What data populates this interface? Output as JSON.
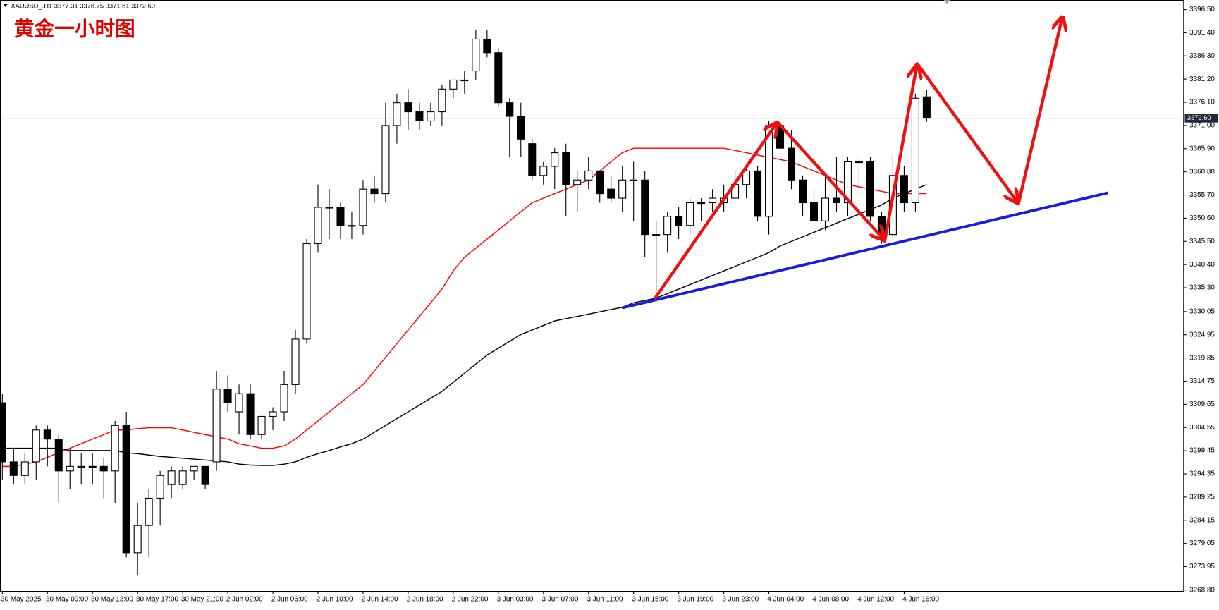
{
  "chart_data": {
    "type": "candlestick",
    "info": "XAUUSD_.H1 3377.31 3378.75 3371.81 3372.60",
    "title": "黄金一小时图",
    "categories": [
      "30 May 2025",
      null,
      null,
      null,
      "30 May 09:00",
      null,
      null,
      null,
      "30 May 13:00",
      null,
      null,
      null,
      "30 May 17:00",
      null,
      null,
      null,
      "30 May 21:00",
      null,
      null,
      null,
      "2 Jun 02:00",
      null,
      null,
      null,
      "2 Jun 06:00",
      null,
      null,
      null,
      "2 Jun 10:00",
      null,
      null,
      null,
      "2 Jun 14:00",
      null,
      null,
      null,
      "2 Jun 18:00",
      null,
      null,
      null,
      "2 Jun 22:00",
      null,
      null,
      null,
      "3 Jun 03:00",
      null,
      null,
      null,
      "3 Jun 07:00",
      null,
      null,
      null,
      "3 Jun 11:00",
      null,
      null,
      null,
      "3 Jun 15:00",
      null,
      null,
      null,
      "3 Jun 19:00",
      null,
      null,
      null,
      "3 Jun 23:00",
      null,
      null,
      null,
      "4 Jun 04:00",
      null,
      null,
      null,
      "4 Jun 08:00",
      null,
      null,
      null,
      "4 Jun 12:00",
      null,
      null,
      null,
      "4 Jun 16:00",
      null,
      null
    ],
    "open": [
      3310,
      3297,
      3294,
      3297,
      3304,
      3302,
      3295,
      3296,
      3296,
      3296,
      3295,
      3305,
      3277,
      3283,
      3289,
      3292,
      3292,
      3295,
      3296,
      3297,
      3313,
      3308,
      3312,
      3303,
      3307,
      3308,
      3314,
      3324,
      3345,
      3353,
      3353,
      3349,
      3349,
      3357,
      3356,
      3371,
      3376,
      3374,
      3372,
      3374,
      3379,
      3381,
      3383,
      3390,
      3387,
      3376,
      3373,
      3367,
      3360,
      3362,
      3365,
      3358,
      3359,
      3361,
      3357,
      3355,
      3359,
      3359,
      3347,
      3347,
      3351,
      3349,
      3354,
      3354,
      3354,
      3355,
      3358,
      3361,
      3351,
      3371,
      3366,
      3359,
      3354,
      3350,
      3355,
      3354,
      3363,
      3363,
      3351,
      3347,
      3360,
      3354,
      3377.31
    ],
    "high": [
      3312,
      3300,
      3299,
      3305,
      3305,
      3303,
      3300,
      3299,
      3299,
      3298,
      3306,
      3308,
      3288,
      3291,
      3295,
      3296,
      3296,
      3296,
      3296,
      3317,
      3316,
      3314,
      3314,
      3307,
      3309,
      3317,
      3326,
      3346,
      3358,
      3357,
      3354,
      3352,
      3359,
      3360,
      3376,
      3378,
      3379,
      3376,
      3376,
      3380,
      3381,
      3383,
      3392,
      3392,
      3388,
      3377,
      3376,
      3368,
      3363,
      3366,
      3367,
      3361,
      3364,
      3361,
      3360,
      3362,
      3363,
      3361,
      3350,
      3352,
      3353,
      3355,
      3355,
      3357,
      3358,
      3361,
      3362,
      3362,
      3372,
      3373,
      3370,
      3360,
      3357,
      3360,
      3364,
      3364,
      3364,
      3364,
      3352,
      3364,
      3362,
      3378,
      3378.75
    ],
    "low": [
      3293,
      3292,
      3292,
      3293,
      3296,
      3288,
      3291,
      3292,
      3292,
      3289,
      3288,
      3276,
      3272,
      3276,
      3283,
      3289,
      3291,
      3293,
      3291,
      3295,
      3308,
      3303,
      3302,
      3302,
      3304,
      3306,
      3312,
      3323,
      3343,
      3346,
      3346,
      3346,
      3347,
      3354,
      3354,
      3367,
      3370,
      3370,
      3371,
      3371,
      3377,
      3378,
      3381,
      3386,
      3375,
      3364,
      3364,
      3359,
      3358,
      3357,
      3351,
      3352,
      3357,
      3354,
      3354,
      3352,
      3350,
      3342,
      3334,
      3343,
      3346,
      3347,
      3350,
      3352,
      3352,
      3355,
      3355,
      3350,
      3347,
      3364,
      3357,
      3351,
      3349,
      3348,
      3352,
      3351,
      3356,
      3350,
      3345,
      3346,
      3352,
      3352,
      3371.81
    ],
    "close": [
      3297,
      3294,
      3297,
      3304,
      3302,
      3295,
      3296,
      3296,
      3296,
      3295,
      3305,
      3277,
      3283,
      3289,
      3294,
      3295,
      3295,
      3296,
      3292,
      3313,
      3310,
      3312,
      3303,
      3307,
      3308,
      3314,
      3324,
      3345,
      3353,
      3353,
      3349,
      3349,
      3357,
      3356,
      3371,
      3376,
      3374,
      3372,
      3374,
      3379,
      3381,
      3381,
      3390,
      3387,
      3376,
      3373,
      3368,
      3360,
      3362,
      3365,
      3358,
      3359,
      3361,
      3356,
      3355,
      3359,
      3359,
      3347,
      3347,
      3351,
      3349,
      3354,
      3354,
      3355,
      3355,
      3358,
      3361,
      3351,
      3371,
      3366,
      3359,
      3354,
      3350,
      3355,
      3354,
      3363,
      3363,
      3351,
      3347,
      3360,
      3354,
      3377,
      3372.6
    ],
    "up_color": "#ffffff",
    "down_color": "#000000",
    "lines": [
      {
        "color": "#ff0000",
        "values": [
          3296,
          3296,
          3296.5,
          3297,
          3298,
          3299,
          3300,
          3301,
          3302,
          3303,
          3304,
          3304,
          3304.3,
          3304.5,
          3304.5,
          3304.5,
          3304,
          3303.5,
          3303,
          3302.5,
          3302,
          3301,
          3300.5,
          3300,
          3300,
          3300.5,
          3302,
          3304,
          3306,
          3308,
          3310,
          3312,
          3314,
          3317,
          3320,
          3323,
          3326,
          3329,
          3332,
          3335,
          3339,
          3342,
          3344,
          3346,
          3348,
          3350,
          3352,
          3354,
          3355,
          3356,
          3357,
          3358,
          3359,
          3361,
          3363,
          3365,
          3366,
          3366,
          3366,
          3366,
          3366,
          3366,
          3366,
          3366,
          3366,
          3365.5,
          3365,
          3364.5,
          3364,
          3363.5,
          3363,
          3362,
          3361,
          3360,
          3359,
          3358,
          3357.5,
          3357,
          3356.5,
          3356,
          3356,
          3356,
          3356
        ]
      },
      {
        "color": "#000000",
        "values": [
          3300,
          3300,
          3300,
          3300,
          3300,
          3300,
          3299.5,
          3299.5,
          3299.5,
          3299.5,
          3299.5,
          3299,
          3298.8,
          3298.5,
          3298.2,
          3298,
          3297.8,
          3297.6,
          3297.4,
          3297.2,
          3297,
          3296.5,
          3296.3,
          3296.2,
          3296.2,
          3296.5,
          3297,
          3298,
          3298.8,
          3299.5,
          3300.3,
          3301,
          3302,
          3303.5,
          3305,
          3306.5,
          3308,
          3309.5,
          3311,
          3312.5,
          3314.5,
          3316.5,
          3318.5,
          3320.5,
          3322,
          3323.5,
          3325,
          3326,
          3327,
          3328,
          3328.5,
          3329,
          3329.5,
          3330,
          3330.5,
          3331,
          3332,
          3332.5,
          3333,
          3334,
          3335,
          3336,
          3337,
          3338,
          3339,
          3340,
          3341,
          3342,
          3343,
          3344.5,
          3345.5,
          3346.5,
          3347.5,
          3348.5,
          3349.5,
          3350.5,
          3351.5,
          3352.5,
          3353.5,
          3355,
          3356,
          3357,
          3358
        ]
      }
    ],
    "current_price": {
      "value": 3372.6,
      "label": "3372.60"
    },
    "ylim": [
      3268.6,
      3398.6
    ],
    "yticks": [
      {
        "value": 3396.5,
        "label": "3396.50"
      },
      {
        "value": 3391.4,
        "label": "3391.40"
      },
      {
        "value": 3386.3,
        "label": "3386.30"
      },
      {
        "value": 3381.2,
        "label": "3381.20"
      },
      {
        "value": 3376.1,
        "label": "3376.10"
      },
      {
        "value": 3371,
        "label": "3371.00"
      },
      {
        "value": 3365.9,
        "label": "3365.90"
      },
      {
        "value": 3360.8,
        "label": "3360.80"
      },
      {
        "value": 3355.7,
        "label": "3355.70"
      },
      {
        "value": 3350.6,
        "label": "3350.60"
      },
      {
        "value": 3345.5,
        "label": "3345.50"
      },
      {
        "value": 3340.4,
        "label": "3340.40"
      },
      {
        "value": 3335.3,
        "label": "3335.30"
      },
      3330.05,
      3324.95,
      3319.85,
      3314.75,
      3309.65,
      3304.55,
      3299.45,
      3294.35,
      3289.25,
      3284.15,
      3279.05,
      3273.95,
      {
        "value": 3268.8,
        "label": "3268.80"
      }
    ]
  }
}
